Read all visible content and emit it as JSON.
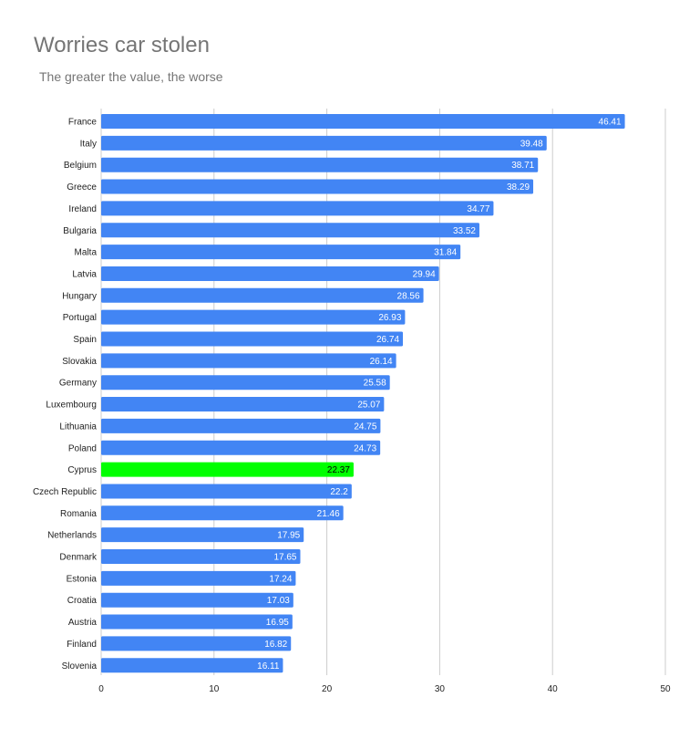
{
  "chart_data": {
    "type": "bar",
    "orientation": "horizontal",
    "title": "Worries car stolen",
    "subtitle": "The greater the value, the worse",
    "categories": [
      "France",
      "Italy",
      "Belgium",
      "Greece",
      "Ireland",
      "Bulgaria",
      "Malta",
      "Latvia",
      "Hungary",
      "Portugal",
      "Spain",
      "Slovakia",
      "Germany",
      "Luxembourg",
      "Lithuania",
      "Poland",
      "Cyprus",
      "Czech Republic",
      "Romania",
      "Netherlands",
      "Denmark",
      "Estonia",
      "Croatia",
      "Austria",
      "Finland",
      "Slovenia"
    ],
    "values": [
      46.41,
      39.48,
      38.71,
      38.29,
      34.77,
      33.52,
      31.84,
      29.94,
      28.56,
      26.93,
      26.74,
      26.14,
      25.58,
      25.07,
      24.75,
      24.73,
      22.37,
      22.2,
      21.46,
      17.95,
      17.65,
      17.24,
      17.03,
      16.95,
      16.82,
      16.11
    ],
    "value_labels": [
      "46.41",
      "39.48",
      "38.71",
      "38.29",
      "34.77",
      "33.52",
      "31.84",
      "29.94",
      "28.56",
      "26.93",
      "26.74",
      "26.14",
      "25.58",
      "25.07",
      "24.75",
      "24.73",
      "22.37",
      "22.2",
      "21.46",
      "17.95",
      "17.65",
      "17.24",
      "17.03",
      "16.95",
      "16.82",
      "16.11"
    ],
    "highlight": "Cyprus",
    "colors": {
      "bar": "#4285f4",
      "highlight": "#00ff00",
      "grid": "#cccccc",
      "label_on_bar": "#ffffff",
      "label_on_highlight": "#000000"
    },
    "xlim": [
      0,
      50
    ],
    "xticks": [
      "0",
      "10",
      "20",
      "30",
      "40",
      "50"
    ],
    "xtick_values": [
      0,
      10,
      20,
      30,
      40,
      50
    ],
    "grid": true,
    "legend": "none"
  }
}
